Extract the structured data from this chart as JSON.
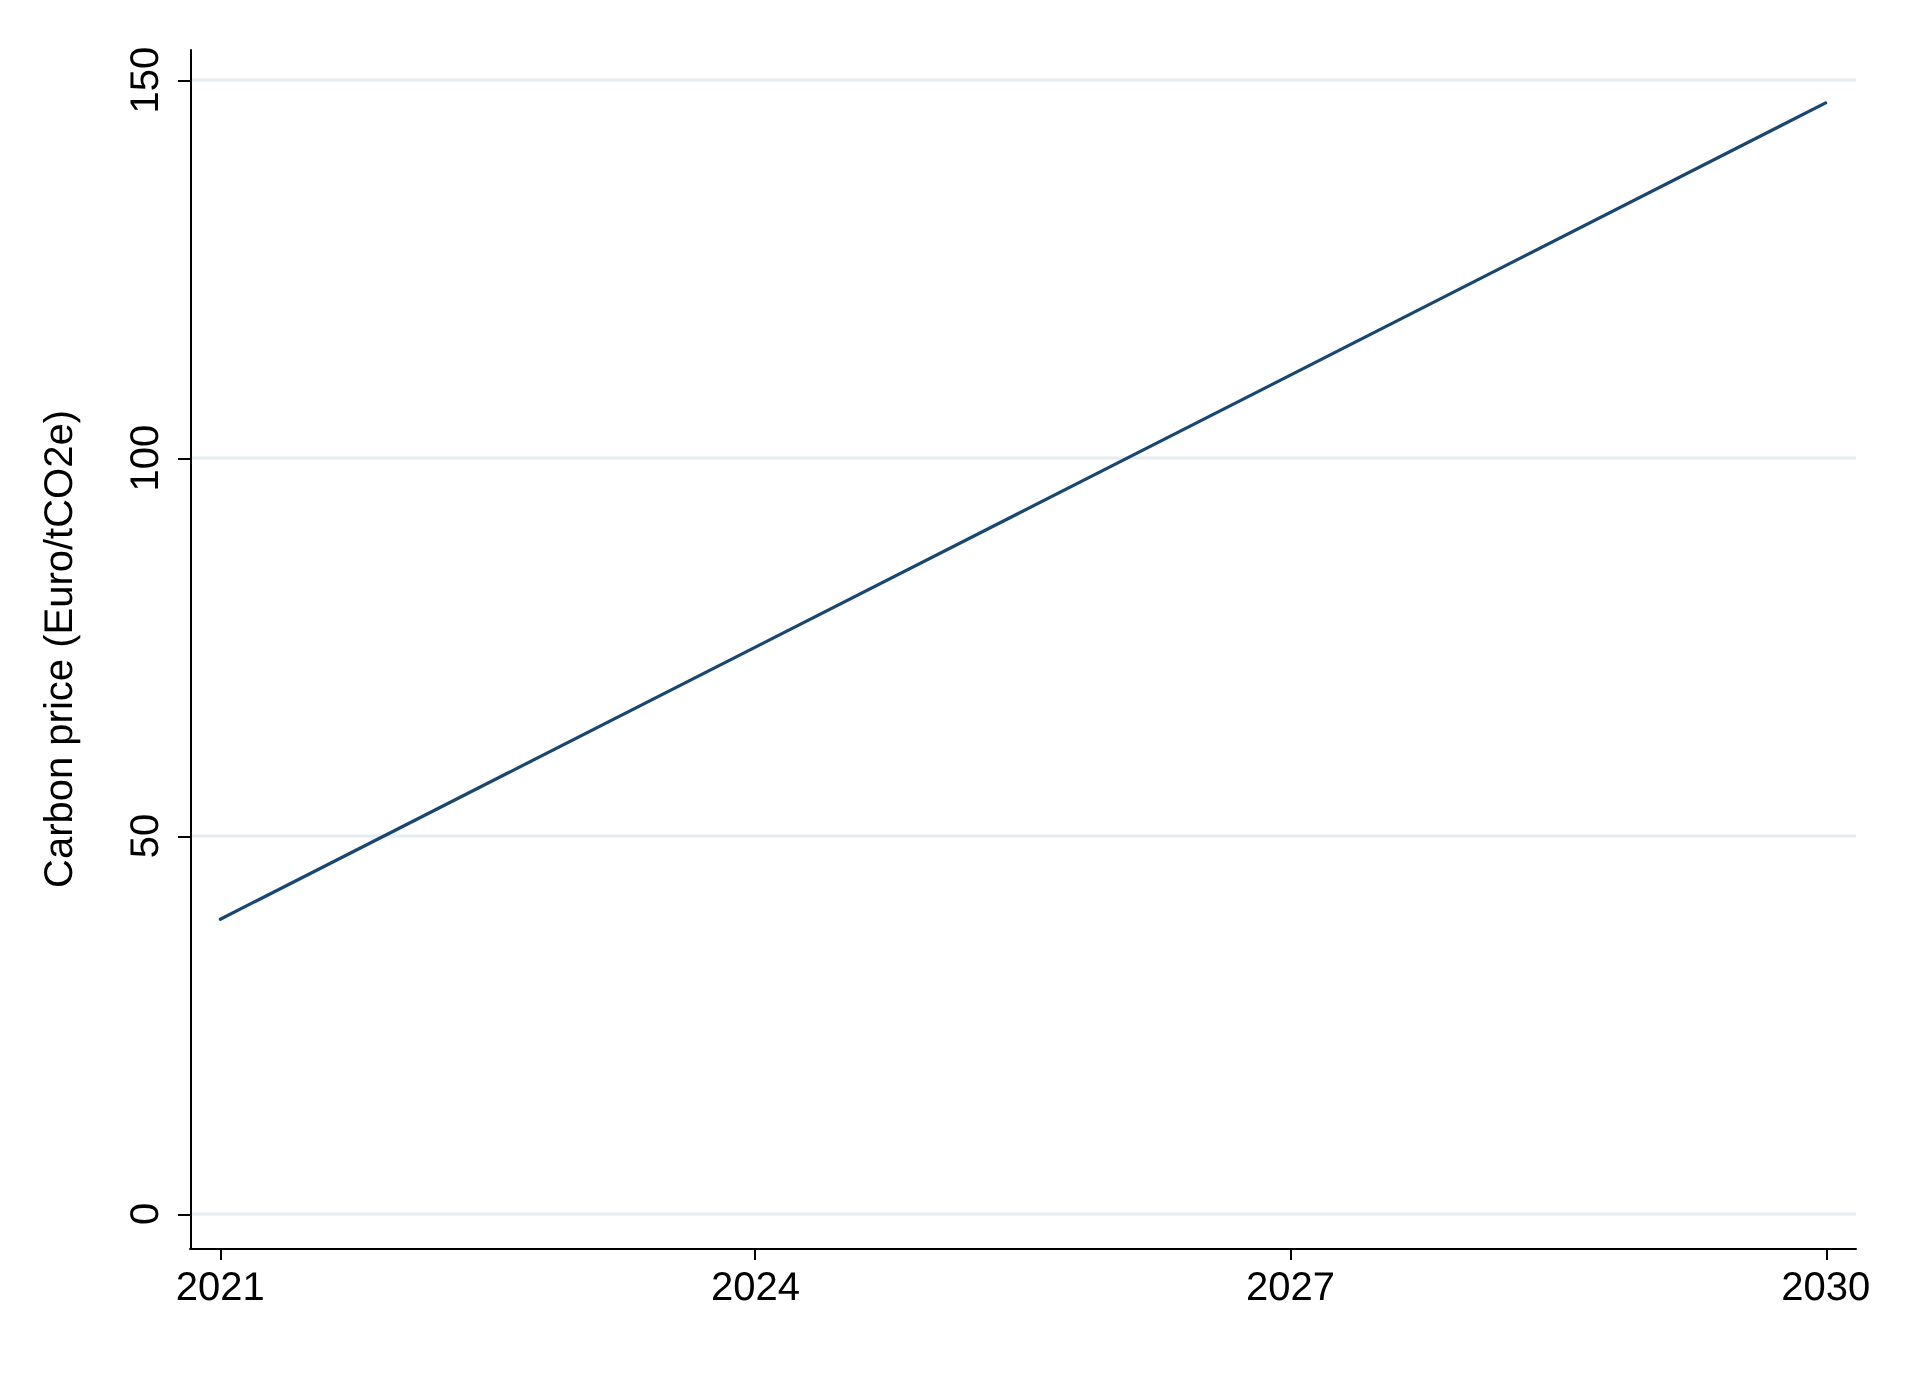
{
  "chart_data": {
    "type": "line",
    "ylabel": "Carbon price (Euro/tCO2e)",
    "x": [
      2021,
      2030
    ],
    "series": [
      {
        "color": "#1a476f",
        "values": [
          39,
          147
        ]
      }
    ],
    "xlim": [
      2020.83,
      2030.17
    ],
    "xticks": [
      2021,
      2024,
      2027,
      2030
    ],
    "ylim": [
      -4.5,
      154
    ],
    "yticks": [
      0,
      50,
      100,
      150
    ],
    "grid": "y",
    "marker": "none",
    "line_style": "solid"
  }
}
